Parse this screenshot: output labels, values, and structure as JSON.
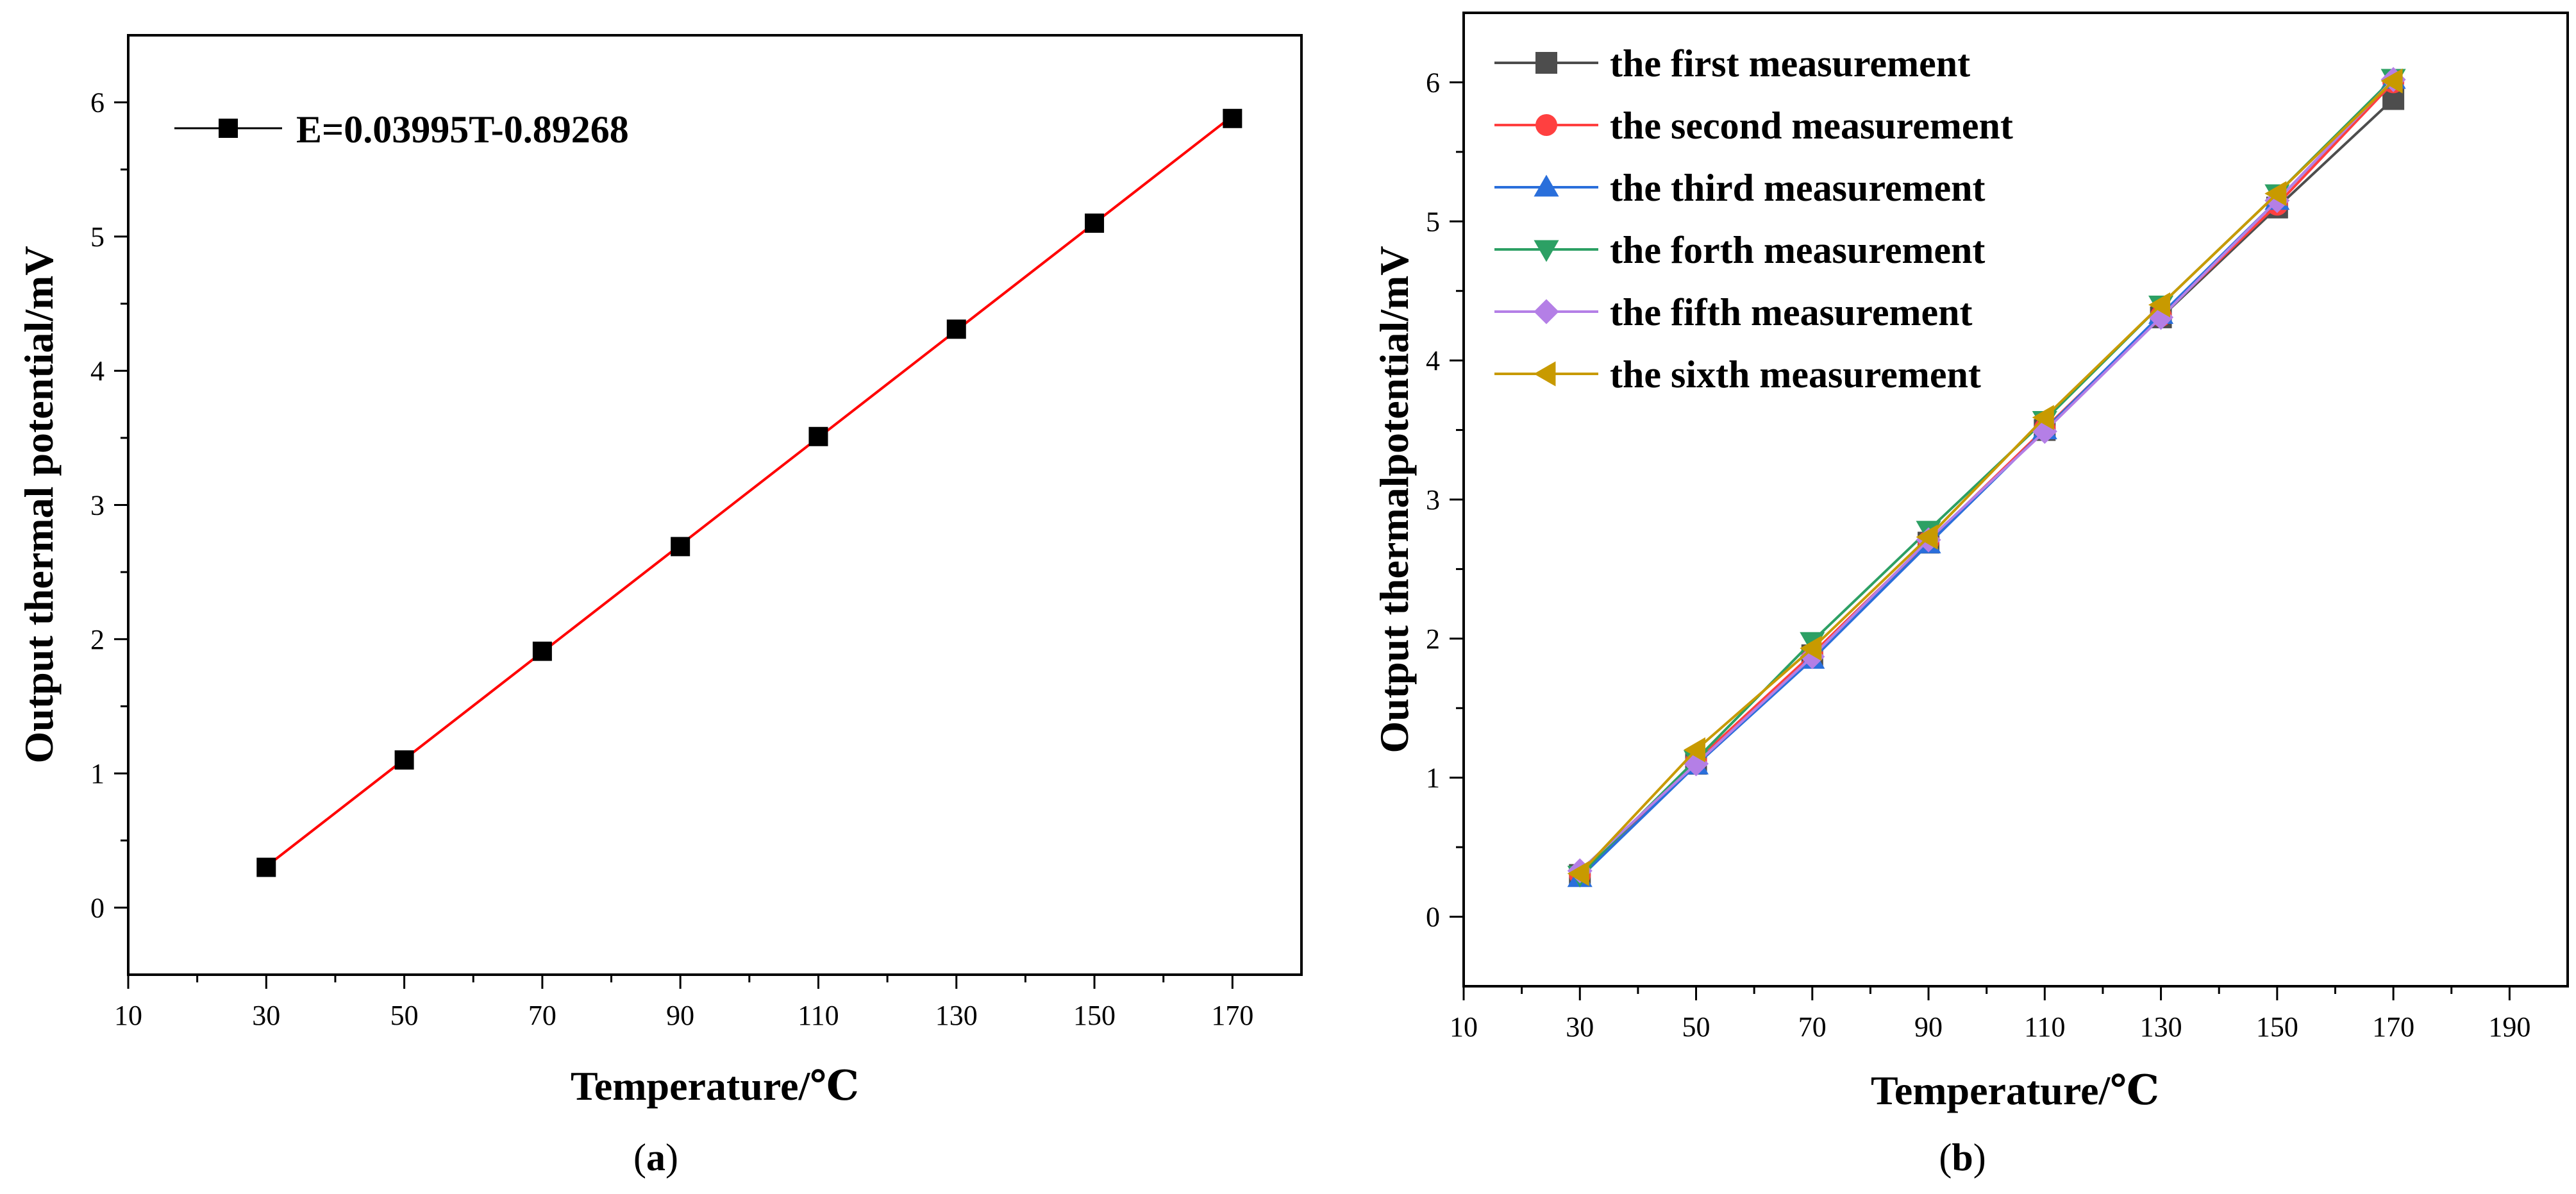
{
  "chart_data": [
    {
      "type": "line",
      "panel_caption": {
        "open": "(",
        "letter": "a",
        "close": ")"
      },
      "xlabel": "Temperature/℃",
      "ylabel": "Output thermal potential/mV",
      "xlim": [
        10,
        180
      ],
      "ylim": [
        -0.5,
        6.5
      ],
      "xticks": [
        10,
        30,
        50,
        70,
        90,
        110,
        130,
        150,
        170
      ],
      "yticks": [
        0,
        1,
        2,
        3,
        4,
        5,
        6
      ],
      "grid": false,
      "legend_position": "top-left",
      "series": [
        {
          "name": "E=0.03995T-0.89268",
          "color": "#000000",
          "marker": "square",
          "x": [
            30,
            50,
            70,
            90,
            110,
            130,
            150,
            170
          ],
          "y": [
            0.3,
            1.1,
            1.91,
            2.69,
            3.51,
            4.31,
            5.1,
            5.88
          ]
        }
      ],
      "fit_line": {
        "slope": 0.03995,
        "intercept": -0.89268,
        "x_range": [
          30,
          170
        ],
        "color": "#ff0000"
      }
    },
    {
      "type": "line",
      "panel_caption": {
        "open": "(",
        "letter": "b",
        "close": ")"
      },
      "xlabel": "Temperature/℃",
      "ylabel": "Output thermalpotential/mV",
      "xlim": [
        10,
        200
      ],
      "ylim": [
        -0.5,
        6.5
      ],
      "xticks": [
        10,
        30,
        50,
        70,
        90,
        110,
        130,
        150,
        170,
        190
      ],
      "yticks": [
        0,
        1,
        2,
        3,
        4,
        5,
        6
      ],
      "grid": false,
      "legend_position": "top-left",
      "series": [
        {
          "name": "the first measurement",
          "color": "#4d4d4d",
          "marker": "square",
          "x": [
            30,
            50,
            70,
            90,
            110,
            130,
            150,
            170
          ],
          "y": [
            0.3,
            1.1,
            1.88,
            2.69,
            3.5,
            4.31,
            5.1,
            5.88
          ]
        },
        {
          "name": "the second measurement",
          "color": "#ff4040",
          "marker": "circle",
          "x": [
            30,
            50,
            70,
            90,
            110,
            130,
            150,
            170
          ],
          "y": [
            0.3,
            1.12,
            1.89,
            2.7,
            3.51,
            4.32,
            5.12,
            6.0
          ]
        },
        {
          "name": "the third measurement",
          "color": "#2a6fdb",
          "marker": "triangle-up",
          "x": [
            30,
            50,
            70,
            90,
            110,
            130,
            150,
            170
          ],
          "y": [
            0.28,
            1.09,
            1.85,
            2.68,
            3.5,
            4.33,
            5.15,
            6.02
          ]
        },
        {
          "name": "the forth  measurement",
          "color": "#2ca064",
          "marker": "triangle-down",
          "x": [
            30,
            50,
            70,
            90,
            110,
            130,
            150,
            170
          ],
          "y": [
            0.3,
            1.13,
            1.98,
            2.78,
            3.57,
            4.4,
            5.2,
            6.03
          ]
        },
        {
          "name": "the fifth  measurement",
          "color": "#b47fe6",
          "marker": "diamond",
          "x": [
            30,
            50,
            70,
            90,
            110,
            130,
            150,
            170
          ],
          "y": [
            0.33,
            1.1,
            1.87,
            2.71,
            3.49,
            4.31,
            5.15,
            6.02
          ]
        },
        {
          "name": "the sixth  measurement",
          "color": "#c89a00",
          "marker": "triangle-left",
          "x": [
            30,
            50,
            70,
            90,
            110,
            130,
            150,
            170
          ],
          "y": [
            0.31,
            1.2,
            1.93,
            2.73,
            3.59,
            4.4,
            5.2,
            6.01
          ]
        }
      ]
    }
  ]
}
